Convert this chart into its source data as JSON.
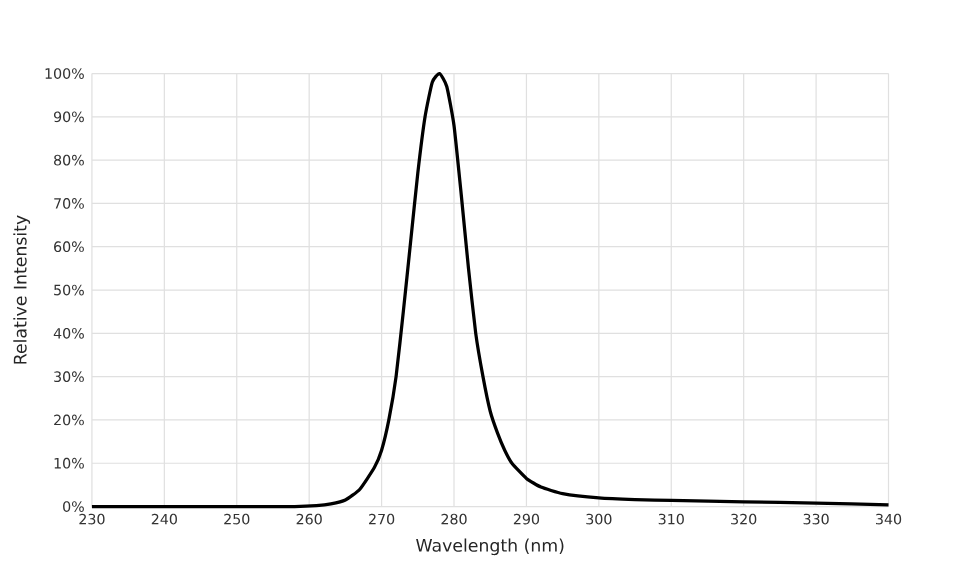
{
  "chart_data": {
    "type": "line",
    "xlabel": "Wavelength (nm)",
    "ylabel": "Relative Intensity",
    "grid": true,
    "line_style": "solid",
    "marker": "none",
    "xlim": [
      230,
      340
    ],
    "xticks": [
      230,
      240,
      250,
      260,
      270,
      280,
      290,
      300,
      310,
      320,
      330,
      340
    ],
    "ylim": [
      0,
      100
    ],
    "yticks": [
      {
        "value": 0,
        "label": "0%"
      },
      {
        "value": 10,
        "label": "10%"
      },
      {
        "value": 20,
        "label": "20%"
      },
      {
        "value": 30,
        "label": "30%"
      },
      {
        "value": 40,
        "label": "40%"
      },
      {
        "value": 50,
        "label": "50%"
      },
      {
        "value": 60,
        "label": "60%"
      },
      {
        "value": 70,
        "label": "70%"
      },
      {
        "value": 80,
        "label": "80%"
      },
      {
        "value": 90,
        "label": "90%"
      },
      {
        "value": 100,
        "label": "100%"
      }
    ],
    "series": [
      {
        "color": "#000000",
        "x": [
          230,
          240,
          250,
          258,
          261,
          263,
          265,
          267,
          269,
          270,
          271,
          272,
          273,
          274,
          275,
          276,
          277,
          278,
          279,
          280,
          281,
          282,
          283,
          284,
          285,
          286,
          287,
          288,
          290,
          292,
          295,
          300,
          305,
          310,
          320,
          330,
          340
        ],
        "values": [
          0,
          0,
          0,
          0,
          0.2,
          0.6,
          1.5,
          4,
          9,
          13,
          20,
          30,
          45,
          61,
          77,
          90,
          98,
          100,
          97,
          88,
          72,
          55,
          40,
          30,
          22,
          17,
          13,
          10,
          6.5,
          4.5,
          3,
          2,
          1.6,
          1.4,
          1.1,
          0.8,
          0.4
        ]
      }
    ]
  }
}
